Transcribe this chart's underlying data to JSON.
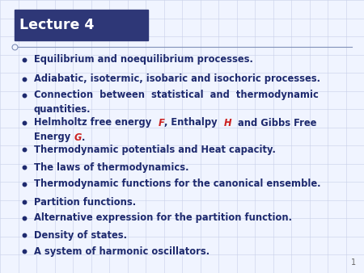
{
  "title": "Lecture 4",
  "title_bg_color": "#2E3777",
  "title_text_color": "#FFFFFF",
  "bg_color": "#F0F4FF",
  "grid_color": "#C8D0E8",
  "bullet_color": "#1E2A6E",
  "red_color": "#CC2222",
  "page_number": "1",
  "bullet_items": [
    {
      "segments": [
        {
          "text": "Equilibrium and noequilibrium processes.",
          "style": "normal"
        }
      ]
    },
    {
      "segments": [
        {
          "text": "Adiabatic, isotermic, isobaric and isochoric processes.",
          "style": "normal"
        }
      ]
    },
    {
      "segments": [
        {
          "text": "Connection  between  statistical  and  thermodynamic\nquantities.",
          "style": "normal"
        }
      ]
    },
    {
      "segments": [
        {
          "text": "Helmholtz free energy  ",
          "style": "normal"
        },
        {
          "text": "F",
          "style": "italic_red"
        },
        {
          "text": ", Enthalpy  ",
          "style": "normal"
        },
        {
          "text": "H",
          "style": "italic_red"
        },
        {
          "text": "  and Gibbs Free\nEnergy ",
          "style": "normal"
        },
        {
          "text": "G",
          "style": "italic_red"
        },
        {
          "text": ".",
          "style": "normal"
        }
      ]
    },
    {
      "segments": [
        {
          "text": "Thermodynamic potentials and Heat capacity.",
          "style": "normal"
        }
      ]
    },
    {
      "segments": [
        {
          "text": "The laws of thermodynamics.",
          "style": "normal"
        }
      ]
    },
    {
      "segments": [
        {
          "text": "Thermodynamic functions for the canonical ensemble.",
          "style": "normal"
        }
      ]
    },
    {
      "segments": [
        {
          "text": "Partition functions.",
          "style": "normal"
        }
      ]
    },
    {
      "segments": [
        {
          "text": "Alternative expression for the partition function.",
          "style": "normal"
        }
      ]
    },
    {
      "segments": [
        {
          "text": "Density of states.",
          "style": "normal"
        }
      ]
    },
    {
      "segments": [
        {
          "text": "A system of harmonic oscillators.",
          "style": "normal"
        }
      ]
    }
  ],
  "font_size": 8.3,
  "title_font_size": 12.5,
  "figwidth": 4.5,
  "figheight": 3.38,
  "dpi": 100
}
